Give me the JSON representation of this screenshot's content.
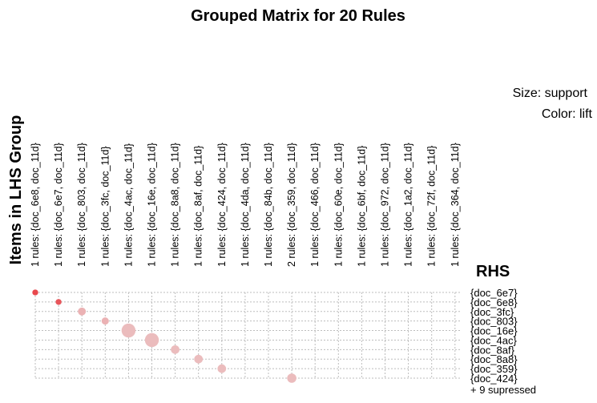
{
  "chart_data": {
    "type": "grouped-matrix",
    "title": "Grouped Matrix for 20 Rules",
    "ylabel": "Items in LHS Group",
    "rhs_label": "RHS",
    "legend": {
      "size": "Size: support",
      "color": "Color: lift"
    },
    "columns": [
      "1 rules: {doc_6e8, doc_11d}",
      "1 rules: {doc_6e7, doc_11d}",
      "1 rules: {doc_803, doc_11d}",
      "1 rules: {doc_3fc, doc_11d}",
      "1 rules: {doc_4ac, doc_11d}",
      "1 rules: {doc_16e, doc_11d}",
      "1 rules: {doc_8a8, doc_11d}",
      "1 rules: {doc_8af, doc_11d}",
      "1 rules: {doc_424, doc_11d}",
      "1 rules: {doc_4da, doc_11d}",
      "1 rules: {doc_84b, doc_11d}",
      "2 rules: {doc_359, doc_11d}",
      "1 rules: {doc_466, doc_11d}",
      "1 rules: {doc_60e, doc_11d}",
      "1 rules: {doc_6bf, doc_11d}",
      "1 rules: {doc_972, doc_11d}",
      "1 rules: {doc_1a2, doc_11d}",
      "1 rules: {doc_72f, doc_11d}",
      "1 rules: {doc_364, doc_11d}"
    ],
    "rows": [
      "{doc_6e7}",
      "{doc_6e8}",
      "{doc_3fc}",
      "{doc_803}",
      "{doc_16e}",
      "{doc_4ac}",
      "{doc_8af}",
      "{doc_8a8}",
      "{doc_359}",
      "{doc_424}"
    ],
    "suppressed_note": "+ 9 supressed",
    "points": [
      {
        "col": 0,
        "row": 0,
        "support": 0.4,
        "lift": 1.0
      },
      {
        "col": 1,
        "row": 1,
        "support": 0.4,
        "lift": 0.9
      },
      {
        "col": 2,
        "row": 2,
        "support": 0.7,
        "lift": 0.25
      },
      {
        "col": 3,
        "row": 3,
        "support": 0.6,
        "lift": 0.25
      },
      {
        "col": 4,
        "row": 4,
        "support": 1.6,
        "lift": 0.18
      },
      {
        "col": 5,
        "row": 5,
        "support": 1.6,
        "lift": 0.18
      },
      {
        "col": 6,
        "row": 6,
        "support": 0.8,
        "lift": 0.18
      },
      {
        "col": 7,
        "row": 7,
        "support": 0.8,
        "lift": 0.18
      },
      {
        "col": 8,
        "row": 8,
        "support": 0.8,
        "lift": 0.18
      },
      {
        "col": 11,
        "row": 9,
        "support": 0.9,
        "lift": 0.18
      }
    ],
    "colors": {
      "high_lift": "#e8484d",
      "low_lift": "#ecd5d6",
      "grid": "#bdbdbd"
    },
    "grid": true
  }
}
